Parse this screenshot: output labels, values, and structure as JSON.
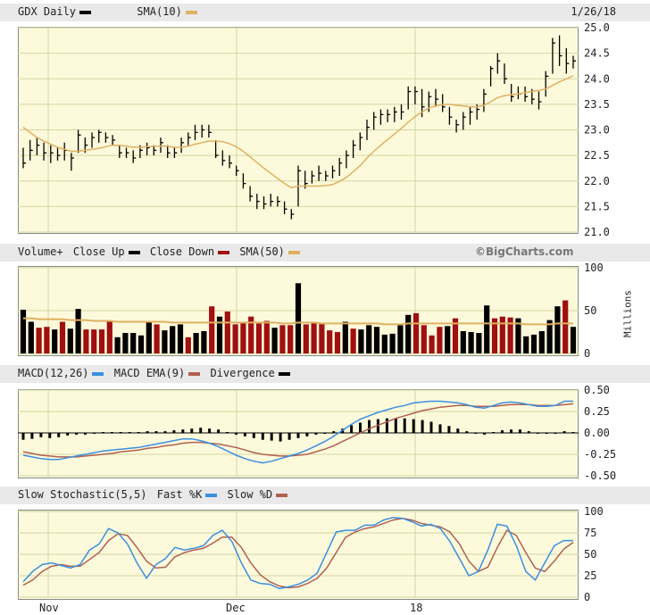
{
  "header": {
    "symbol_label": "GDX Daily",
    "sma_label": "SMA(10)",
    "date": "1/26/18"
  },
  "volume_panel": {
    "label": "Volume+",
    "close_up_label": "Close Up",
    "close_down_label": "Close Down",
    "sma_label": "SMA(50)",
    "brand": "©BigCharts.com",
    "units": "Millions"
  },
  "macd_panel": {
    "macd_label": "MACD(12,26)",
    "ema_label": "MACD EMA(9)",
    "div_label": "Divergence"
  },
  "stoch_panel": {
    "label": "Slow Stochastic(5,5)",
    "fast_label": "Fast %K",
    "slow_label": "Slow %D"
  },
  "colors": {
    "bar": "#000000",
    "sma": "#e0b060",
    "up": "#000000",
    "down": "#a01010",
    "macd": "#3a8fe0",
    "ema": "#b06050",
    "fastk": "#3a8fe0",
    "slowd": "#b06050",
    "plot_bg": "#fdfadc",
    "grid": "#cfd7a0"
  },
  "chart_data": [
    {
      "type": "ohlc",
      "name": "price",
      "x_labels": [
        "Nov",
        "Dec",
        "18"
      ],
      "ylim": [
        21.0,
        25.0
      ],
      "yticks": [
        "25.0",
        "24.5",
        "24.0",
        "23.5",
        "23.0",
        "22.5",
        "22.0",
        "21.5",
        "21.0"
      ],
      "bars": [
        [
          22.65,
          22.25,
          22.35
        ],
        [
          22.8,
          22.4,
          22.6
        ],
        [
          22.85,
          22.5,
          22.7
        ],
        [
          22.75,
          22.4,
          22.55
        ],
        [
          22.7,
          22.35,
          22.55
        ],
        [
          22.65,
          22.4,
          22.5
        ],
        [
          22.75,
          22.4,
          22.6
        ],
        [
          22.55,
          22.2,
          22.45
        ],
        [
          23.0,
          22.55,
          22.9
        ],
        [
          22.85,
          22.55,
          22.7
        ],
        [
          22.95,
          22.65,
          22.85
        ],
        [
          23.0,
          22.75,
          22.95
        ],
        [
          22.95,
          22.75,
          22.85
        ],
        [
          22.9,
          22.7,
          22.8
        ],
        [
          22.7,
          22.45,
          22.55
        ],
        [
          22.65,
          22.45,
          22.55
        ],
        [
          22.6,
          22.35,
          22.45
        ],
        [
          22.7,
          22.45,
          22.6
        ],
        [
          22.75,
          22.5,
          22.65
        ],
        [
          22.7,
          22.5,
          22.6
        ],
        [
          22.85,
          22.55,
          22.75
        ],
        [
          22.7,
          22.45,
          22.55
        ],
        [
          22.65,
          22.45,
          22.55
        ],
        [
          22.85,
          22.55,
          22.75
        ],
        [
          22.95,
          22.7,
          22.85
        ],
        [
          23.1,
          22.8,
          22.95
        ],
        [
          23.1,
          22.85,
          23.0
        ],
        [
          23.1,
          22.85,
          22.95
        ],
        [
          22.8,
          22.45,
          22.5
        ],
        [
          22.6,
          22.3,
          22.4
        ],
        [
          22.5,
          22.25,
          22.35
        ],
        [
          22.3,
          22.1,
          22.2
        ],
        [
          22.15,
          21.85,
          21.95
        ],
        [
          21.9,
          21.6,
          21.7
        ],
        [
          21.75,
          21.45,
          21.6
        ],
        [
          21.7,
          21.45,
          21.55
        ],
        [
          21.75,
          21.5,
          21.6
        ],
        [
          21.7,
          21.5,
          21.6
        ],
        [
          21.6,
          21.35,
          21.45
        ],
        [
          21.45,
          21.25,
          21.35
        ],
        [
          22.3,
          21.5,
          22.2
        ],
        [
          22.2,
          21.85,
          21.95
        ],
        [
          22.2,
          21.95,
          22.1
        ],
        [
          22.3,
          22.0,
          22.15
        ],
        [
          22.2,
          22.0,
          22.1
        ],
        [
          22.3,
          22.05,
          22.2
        ],
        [
          22.45,
          22.1,
          22.35
        ],
        [
          22.6,
          22.25,
          22.5
        ],
        [
          22.8,
          22.45,
          22.7
        ],
        [
          22.95,
          22.6,
          22.85
        ],
        [
          23.2,
          22.8,
          23.05
        ],
        [
          23.35,
          23.0,
          23.25
        ],
        [
          23.4,
          23.1,
          23.3
        ],
        [
          23.4,
          23.15,
          23.3
        ],
        [
          23.45,
          23.15,
          23.35
        ],
        [
          23.5,
          23.2,
          23.35
        ],
        [
          23.85,
          23.4,
          23.75
        ],
        [
          23.85,
          23.5,
          23.75
        ],
        [
          23.8,
          23.25,
          23.45
        ],
        [
          23.75,
          23.35,
          23.65
        ],
        [
          23.8,
          23.45,
          23.6
        ],
        [
          23.7,
          23.35,
          23.45
        ],
        [
          23.45,
          23.1,
          23.25
        ],
        [
          23.2,
          22.95,
          23.1
        ],
        [
          23.35,
          23.0,
          23.25
        ],
        [
          23.45,
          23.1,
          23.35
        ],
        [
          23.5,
          23.2,
          23.4
        ],
        [
          23.8,
          23.35,
          23.7
        ],
        [
          24.25,
          23.85,
          24.2
        ],
        [
          24.5,
          24.1,
          24.35
        ],
        [
          24.3,
          23.9,
          24.0
        ],
        [
          23.9,
          23.55,
          23.65
        ],
        [
          23.85,
          23.6,
          23.7
        ],
        [
          23.85,
          23.55,
          23.65
        ],
        [
          23.8,
          23.5,
          23.6
        ],
        [
          23.75,
          23.4,
          23.55
        ],
        [
          24.15,
          23.65,
          24.05
        ],
        [
          24.8,
          24.1,
          24.7
        ],
        [
          24.85,
          24.25,
          24.45
        ],
        [
          24.6,
          24.1,
          24.3
        ],
        [
          24.45,
          24.2,
          24.35
        ]
      ],
      "sma": [
        23.05,
        22.95,
        22.85,
        22.78,
        22.72,
        22.66,
        22.62,
        22.58,
        22.58,
        22.6,
        22.62,
        22.64,
        22.67,
        22.7,
        22.7,
        22.68,
        22.66,
        22.66,
        22.67,
        22.68,
        22.68,
        22.68,
        22.66,
        22.66,
        22.68,
        22.72,
        22.75,
        22.78,
        22.78,
        22.77,
        22.73,
        22.67,
        22.58,
        22.47,
        22.36,
        22.25,
        22.15,
        22.05,
        21.95,
        21.87,
        21.9,
        21.9,
        21.9,
        21.9,
        21.91,
        21.93,
        21.99,
        22.07,
        22.18,
        22.3,
        22.45,
        22.58,
        22.7,
        22.81,
        22.92,
        23.03,
        23.15,
        23.26,
        23.35,
        23.43,
        23.47,
        23.5,
        23.5,
        23.48,
        23.47,
        23.45,
        23.45,
        23.48,
        23.55,
        23.63,
        23.67,
        23.69,
        23.7,
        23.73,
        23.75,
        23.77,
        23.8,
        23.87,
        23.94,
        24.0,
        24.06
      ]
    },
    {
      "type": "bar",
      "name": "volume",
      "ylim": [
        0,
        100
      ],
      "yticks": [
        "100",
        "50",
        "0"
      ],
      "ylabel": "Millions",
      "values": [
        51,
        37,
        30,
        31,
        28,
        37,
        29,
        52,
        28,
        28,
        28,
        37,
        19,
        24,
        24,
        21,
        38,
        34,
        27,
        32,
        34,
        19,
        24,
        26,
        55,
        43,
        49,
        34,
        37,
        43,
        35,
        38,
        30,
        33,
        33,
        82,
        34,
        37,
        35,
        27,
        25,
        37,
        29,
        28,
        33,
        31,
        22,
        23,
        33,
        45,
        47,
        33,
        21,
        31,
        32,
        41,
        26,
        25,
        24,
        56,
        41,
        43,
        42,
        41,
        20,
        22,
        26,
        39,
        55,
        62,
        31
      ],
      "up": [
        1,
        1,
        0,
        0,
        1,
        0,
        1,
        1,
        0,
        0,
        0,
        0,
        1,
        1,
        1,
        1,
        1,
        0,
        1,
        1,
        1,
        0,
        1,
        1,
        0,
        1,
        0,
        0,
        0,
        0,
        0,
        0,
        1,
        0,
        0,
        1,
        0,
        0,
        0,
        0,
        0,
        1,
        0,
        1,
        1,
        1,
        1,
        1,
        1,
        1,
        0,
        0,
        0,
        0,
        1,
        0,
        1,
        1,
        1,
        1,
        0,
        0,
        0,
        1,
        1,
        1,
        1,
        1,
        1,
        0,
        1
      ],
      "sma": [
        41,
        41,
        40,
        40,
        40,
        40,
        39,
        39,
        39,
        38,
        38,
        38,
        37,
        37,
        37,
        37,
        37,
        37,
        37,
        36,
        36,
        36,
        36,
        36,
        36,
        36,
        36,
        36,
        36,
        36,
        36,
        36,
        36,
        35,
        35,
        36,
        36,
        36,
        35,
        35,
        35,
        35,
        35,
        35,
        35,
        35,
        34,
        34,
        34,
        35,
        35,
        35,
        35,
        35,
        35,
        35,
        35,
        35,
        35,
        35,
        35,
        35,
        35,
        35,
        34,
        34,
        34,
        34,
        35,
        35,
        35
      ]
    },
    {
      "type": "line",
      "name": "macd",
      "ylim": [
        -0.5,
        0.5
      ],
      "yticks": [
        "0.50",
        "0.25",
        "0.00",
        "-0.25",
        "-0.50"
      ],
      "series": [
        {
          "name": "MACD(12,26)",
          "values": [
            -0.26,
            -0.28,
            -0.3,
            -0.31,
            -0.31,
            -0.29,
            -0.27,
            -0.25,
            -0.23,
            -0.21,
            -0.2,
            -0.19,
            -0.18,
            -0.17,
            -0.15,
            -0.13,
            -0.11,
            -0.09,
            -0.07,
            -0.07,
            -0.09,
            -0.12,
            -0.16,
            -0.21,
            -0.26,
            -0.3,
            -0.33,
            -0.35,
            -0.33,
            -0.3,
            -0.27,
            -0.24,
            -0.2,
            -0.15,
            -0.1,
            -0.04,
            0.03,
            0.1,
            0.16,
            0.2,
            0.24,
            0.27,
            0.3,
            0.32,
            0.35,
            0.36,
            0.37,
            0.37,
            0.36,
            0.35,
            0.33,
            0.3,
            0.29,
            0.32,
            0.35,
            0.36,
            0.35,
            0.33,
            0.31,
            0.31,
            0.32,
            0.37,
            0.37
          ]
        },
        {
          "name": "MACD EMA(9)",
          "values": [
            -0.22,
            -0.24,
            -0.26,
            -0.27,
            -0.28,
            -0.28,
            -0.28,
            -0.27,
            -0.26,
            -0.25,
            -0.24,
            -0.22,
            -0.21,
            -0.2,
            -0.18,
            -0.17,
            -0.15,
            -0.14,
            -0.12,
            -0.11,
            -0.11,
            -0.12,
            -0.13,
            -0.15,
            -0.17,
            -0.2,
            -0.23,
            -0.25,
            -0.26,
            -0.27,
            -0.27,
            -0.26,
            -0.25,
            -0.22,
            -0.19,
            -0.15,
            -0.1,
            -0.05,
            0.0,
            0.05,
            0.09,
            0.13,
            0.17,
            0.2,
            0.23,
            0.26,
            0.28,
            0.3,
            0.31,
            0.32,
            0.32,
            0.31,
            0.31,
            0.31,
            0.32,
            0.33,
            0.33,
            0.33,
            0.32,
            0.32,
            0.32,
            0.33,
            0.34
          ]
        },
        {
          "name": "Divergence",
          "values": [
            -0.08,
            -0.07,
            -0.05,
            -0.06,
            -0.05,
            -0.03,
            -0.02,
            -0.02,
            0.0,
            0.01,
            0.01,
            0.01,
            0.01,
            0.01,
            0.02,
            0.02,
            0.02,
            0.03,
            0.04,
            0.05,
            0.06,
            0.05,
            0.04,
            0.01,
            -0.02,
            -0.04,
            -0.06,
            -0.08,
            -0.09,
            -0.1,
            -0.08,
            -0.06,
            -0.04,
            -0.02,
            0.0,
            0.02,
            0.05,
            0.09,
            0.12,
            0.15,
            0.16,
            0.17,
            0.17,
            0.17,
            0.16,
            0.15,
            0.13,
            0.1,
            0.08,
            0.05,
            0.02,
            0.0,
            -0.02,
            0.01,
            0.03,
            0.04,
            0.04,
            0.02,
            0.0,
            -0.01,
            0.0,
            0.02,
            0.01
          ]
        }
      ]
    },
    {
      "type": "line",
      "name": "stochastic",
      "x_labels": [
        "Nov",
        "Dec",
        "18"
      ],
      "ylim": [
        0,
        100
      ],
      "yticks": [
        "100",
        "75",
        "50",
        "25",
        "0"
      ],
      "series": [
        {
          "name": "Fast %K",
          "values": [
            18,
            30,
            38,
            40,
            37,
            34,
            38,
            55,
            62,
            80,
            75,
            62,
            40,
            22,
            38,
            45,
            58,
            55,
            57,
            60,
            72,
            78,
            65,
            40,
            20,
            16,
            15,
            10,
            12,
            15,
            20,
            28,
            52,
            76,
            78,
            78,
            84,
            84,
            90,
            93,
            92,
            88,
            83,
            85,
            80,
            65,
            45,
            25,
            30,
            55,
            85,
            83,
            60,
            30,
            20,
            40,
            60,
            66,
            66
          ]
        },
        {
          "name": "Slow %D",
          "values": [
            14,
            20,
            30,
            36,
            38,
            36,
            36,
            44,
            52,
            66,
            74,
            72,
            58,
            42,
            34,
            35,
            47,
            52,
            55,
            57,
            63,
            70,
            70,
            58,
            40,
            26,
            18,
            13,
            11,
            12,
            16,
            22,
            34,
            52,
            70,
            76,
            80,
            82,
            86,
            90,
            92,
            90,
            86,
            84,
            82,
            76,
            62,
            42,
            30,
            35,
            58,
            78,
            72,
            52,
            34,
            30,
            42,
            56,
            64
          ]
        }
      ]
    }
  ]
}
